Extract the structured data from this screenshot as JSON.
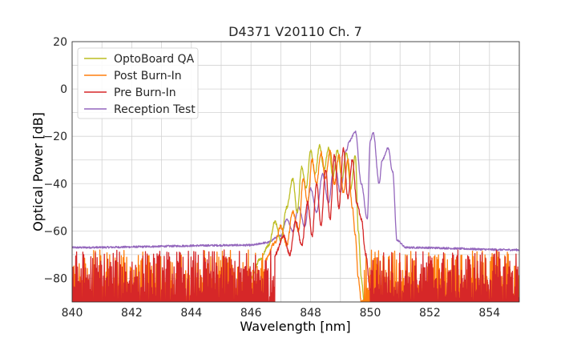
{
  "chart_data": {
    "type": "line",
    "title": "D4371 V20110 Ch. 7",
    "xlabel": "Wavelength [nm]",
    "ylabel": "Optical Power [dB]",
    "xlim": [
      840,
      855
    ],
    "ylim": [
      -90,
      20
    ],
    "xticks": [
      "840",
      "842",
      "844",
      "846",
      "848",
      "850",
      "852",
      "854"
    ],
    "yticks": [
      "20",
      "0",
      "−20",
      "−40",
      "−60",
      "−80"
    ],
    "grid": true,
    "legend_position": "top-left",
    "series": [
      {
        "name": "OptoBoard QA",
        "color": "#bcbd22",
        "noise_floor": false,
        "x": [
          846.0,
          846.3,
          846.6,
          846.8,
          847.0,
          847.2,
          847.4,
          847.55,
          847.7,
          847.85,
          848.0,
          848.15,
          848.3,
          848.45,
          848.6,
          848.75,
          848.9,
          849.05,
          849.2,
          849.35,
          849.5,
          849.6,
          849.7,
          849.8
        ],
        "y": [
          -80,
          -72,
          -66,
          -56,
          -64,
          -50,
          -38,
          -52,
          -33,
          -42,
          -26,
          -36,
          -24,
          -34,
          -25,
          -37,
          -26,
          -38,
          -27,
          -42,
          -28,
          -60,
          -80,
          -90
        ]
      },
      {
        "name": "Post Burn-In",
        "color": "#ff7f0e",
        "noise_floor": true,
        "x": [
          846.5,
          846.8,
          847.0,
          847.2,
          847.4,
          847.6,
          847.75,
          847.9,
          848.05,
          848.2,
          848.35,
          848.5,
          848.65,
          848.8,
          848.95,
          849.1,
          849.25,
          849.4,
          849.5,
          849.6,
          849.7,
          849.8
        ],
        "y": [
          -72,
          -65,
          -58,
          -66,
          -52,
          -60,
          -38,
          -48,
          -30,
          -40,
          -27,
          -38,
          -26,
          -40,
          -28,
          -44,
          -30,
          -50,
          -62,
          -80,
          -90,
          -90
        ]
      },
      {
        "name": "Pre Burn-In",
        "color": "#d62728",
        "noise_floor": true,
        "x": [
          846.8,
          847.1,
          847.3,
          847.5,
          847.7,
          847.9,
          848.05,
          848.2,
          848.35,
          848.5,
          848.65,
          848.8,
          848.95,
          849.1,
          849.25,
          849.4,
          849.55,
          849.7,
          849.85,
          850.0
        ],
        "y": [
          -70,
          -62,
          -70,
          -56,
          -66,
          -48,
          -62,
          -40,
          -58,
          -34,
          -55,
          -28,
          -50,
          -25,
          -46,
          -30,
          -48,
          -55,
          -70,
          -85
        ]
      },
      {
        "name": "Reception Test",
        "color": "#9467bd",
        "noise_floor": false,
        "x": [
          840.0,
          846.0,
          846.5,
          847.0,
          847.2,
          847.4,
          847.6,
          847.8,
          848.0,
          848.2,
          848.4,
          848.6,
          848.8,
          849.0,
          849.2,
          849.3,
          849.5,
          849.7,
          849.9,
          850.0,
          850.1,
          850.3,
          850.4,
          850.6,
          850.75,
          850.9,
          851.2,
          855.0
        ],
        "y": [
          -67,
          -66,
          -65,
          -62,
          -55,
          -60,
          -50,
          -58,
          -42,
          -52,
          -36,
          -48,
          -30,
          -44,
          -26,
          -22,
          -18,
          -40,
          -55,
          -22,
          -18.5,
          -40,
          -30,
          -25,
          -35,
          -64,
          -67,
          -68
        ]
      }
    ]
  }
}
